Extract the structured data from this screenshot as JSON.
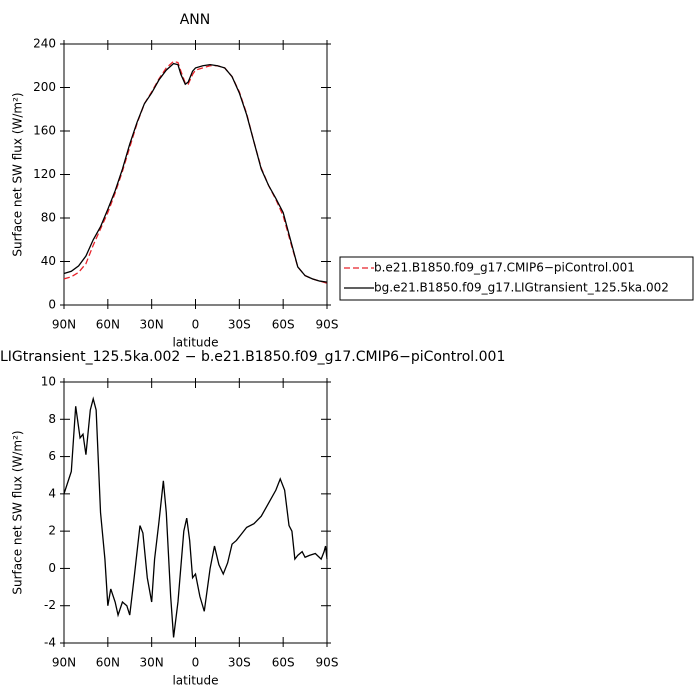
{
  "chart_data": [
    {
      "type": "line",
      "title": "ANN",
      "xlabel": "latitude",
      "ylabel": "Surface net SW flux (W/m²)",
      "x": [
        90,
        85,
        80,
        75,
        70,
        65,
        60,
        55,
        50,
        45,
        40,
        35,
        30,
        25,
        20,
        15,
        12,
        10,
        7,
        5,
        2,
        0,
        -5,
        -10,
        -15,
        -20,
        -25,
        -30,
        -35,
        -40,
        -45,
        -50,
        -55,
        -60,
        -65,
        -70,
        -75,
        -80,
        -85,
        -90
      ],
      "series": [
        {
          "name": "b.e21.B1850.f09_g17.CMIP6−piControl.001",
          "color": "#e8232a",
          "style": "dashed",
          "values": [
            24,
            26,
            30,
            38,
            55,
            70,
            85,
            103,
            123,
            145,
            167,
            185,
            196,
            208,
            218,
            224,
            223,
            215,
            204,
            203,
            212,
            216,
            218,
            220,
            220,
            218,
            210,
            196,
            176,
            150,
            126,
            110,
            97,
            82,
            58,
            35,
            27,
            24,
            22,
            20
          ]
        },
        {
          "name": "bg.e21.B1850.f09_g17.LIGtransient_125.5ka.002",
          "color": "#000000",
          "style": "solid",
          "values": [
            29,
            31,
            36,
            45,
            60,
            72,
            88,
            105,
            125,
            148,
            168,
            185,
            195,
            207,
            216,
            222,
            221,
            212,
            203,
            205,
            215,
            218,
            220,
            221,
            220,
            218,
            210,
            195,
            175,
            150,
            125,
            110,
            98,
            85,
            60,
            35,
            27,
            24,
            22,
            21
          ]
        }
      ],
      "xlim": [
        90,
        -90
      ],
      "xticks": [
        {
          "value": 90,
          "label": "90N"
        },
        {
          "value": 60,
          "label": "60N"
        },
        {
          "value": 30,
          "label": "30N"
        },
        0,
        {
          "value": -30,
          "label": "30S"
        },
        {
          "value": -60,
          "label": "60S"
        },
        {
          "value": -90,
          "label": "90S"
        }
      ],
      "ylim": [
        0,
        240
      ],
      "yticks": [
        0,
        40,
        80,
        120,
        160,
        200,
        240
      ],
      "legend": "right"
    },
    {
      "type": "line",
      "title": "LIGtransient_125.5ka.002 − b.e21.B1850.f09_g17.CMIP6−piControl.001",
      "xlabel": "latitude",
      "ylabel": "Surface net SW flux (W/m²)",
      "x": [
        90,
        85,
        82,
        79,
        77,
        75,
        72,
        70,
        68,
        65,
        62,
        60,
        58,
        55,
        53,
        50,
        47,
        45,
        42,
        38,
        36,
        33,
        30,
        28,
        25,
        22,
        20,
        17,
        15,
        12,
        8,
        6,
        4,
        2,
        0,
        -3,
        -6,
        -10,
        -13,
        -16,
        -19,
        -22,
        -25,
        -28,
        -31,
        -35,
        -40,
        -45,
        -50,
        -55,
        -58,
        -61,
        -64,
        -66,
        -68,
        -70,
        -73,
        -75,
        -78,
        -82,
        -86,
        -88,
        -89,
        -90
      ],
      "values": [
        4.0,
        5.2,
        8.7,
        7.0,
        7.2,
        6.1,
        8.5,
        9.1,
        8.5,
        3.0,
        0.5,
        -2.0,
        -1.1,
        -1.8,
        -2.5,
        -1.8,
        -2.0,
        -2.5,
        -0.5,
        2.3,
        1.9,
        -0.5,
        -1.8,
        0.5,
        2.5,
        4.7,
        3.0,
        -1.5,
        -3.7,
        -1.8,
        2.0,
        2.7,
        1.5,
        -0.5,
        -0.3,
        -1.5,
        -2.3,
        0.0,
        1.2,
        0.2,
        -0.3,
        0.3,
        1.3,
        1.5,
        1.8,
        2.2,
        2.4,
        2.8,
        3.5,
        4.2,
        4.8,
        4.2,
        2.3,
        2.0,
        0.5,
        0.7,
        0.9,
        0.6,
        0.7,
        0.8,
        0.5,
        0.9,
        1.2,
        0.5
      ],
      "color": "#000000",
      "xlim": [
        90,
        -90
      ],
      "xticks": [
        {
          "value": 90,
          "label": "90N"
        },
        {
          "value": 60,
          "label": "60N"
        },
        {
          "value": 30,
          "label": "30N"
        },
        0,
        {
          "value": -30,
          "label": "30S"
        },
        {
          "value": -60,
          "label": "60S"
        },
        {
          "value": -90,
          "label": "90S"
        }
      ],
      "ylim": [
        -4,
        10
      ],
      "yticks": [
        -4,
        -2,
        0,
        2,
        4,
        6,
        8,
        10
      ]
    }
  ]
}
